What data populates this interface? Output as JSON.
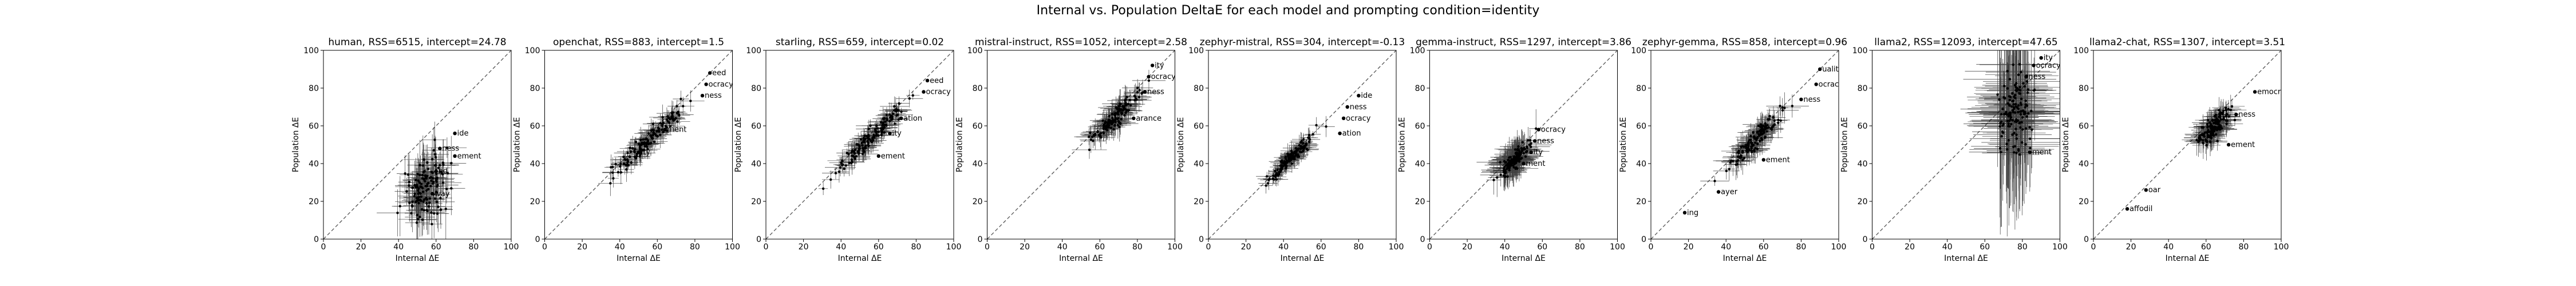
{
  "figure": {
    "title": "Internal vs. Population DeltaE for each model and prompting condition=identity"
  },
  "chart_data": [
    {
      "type": "scatter",
      "title": "human, RSS=6515, intercept=24.78",
      "xlabel": "Internal ΔE",
      "ylabel": "Population ΔE",
      "xlim": [
        0,
        100
      ],
      "ylim": [
        0,
        100
      ],
      "xticks": [
        "0",
        "20",
        "40",
        "60",
        "80",
        "100"
      ],
      "yticks": [
        "0",
        "20",
        "40",
        "60",
        "80",
        "100"
      ],
      "grid": false,
      "diagonal": "y = x (dashed)",
      "center": [
        55,
        28
      ],
      "spread": [
        20,
        14
      ],
      "slope": 0.55,
      "errx": 8,
      "erry": 12,
      "labels": [
        {
          "t": "ide",
          "x": 70,
          "y": 56
        },
        {
          "t": "ness",
          "x": 62,
          "y": 48
        },
        {
          "t": "ement",
          "x": 70,
          "y": 44
        },
        {
          "t": "way",
          "x": 58,
          "y": 24
        },
        {
          "t": "nd",
          "x": 60,
          "y": 36
        }
      ]
    },
    {
      "type": "scatter",
      "title": "openchat, RSS=883, intercept=1.5",
      "xlabel": "Internal ΔE",
      "ylabel": "Population ΔE",
      "xlim": [
        0,
        100
      ],
      "ylim": [
        0,
        100
      ],
      "xticks": [
        "0",
        "20",
        "40",
        "60",
        "80",
        "100"
      ],
      "yticks": [
        "0",
        "20",
        "40",
        "60",
        "80",
        "100"
      ],
      "grid": false,
      "diagonal": "y = x (dashed)",
      "center": [
        55,
        52
      ],
      "spread": [
        32,
        4
      ],
      "slope": 0.97,
      "errx": 6,
      "erry": 5,
      "labels": [
        {
          "t": "eed",
          "x": 88,
          "y": 88
        },
        {
          "t": "ocracy",
          "x": 86,
          "y": 82
        },
        {
          "t": "ness",
          "x": 84,
          "y": 76
        },
        {
          "t": "ment",
          "x": 64,
          "y": 58
        },
        {
          "t": "ity",
          "x": 50,
          "y": 46
        }
      ]
    },
    {
      "type": "scatter",
      "title": "starling, RSS=659, intercept=0.02",
      "xlabel": "Internal ΔE",
      "ylabel": "Population ΔE",
      "xlim": [
        0,
        100
      ],
      "ylim": [
        0,
        100
      ],
      "xticks": [
        "0",
        "20",
        "40",
        "60",
        "80",
        "100"
      ],
      "yticks": [
        "0",
        "20",
        "40",
        "60",
        "80",
        "100"
      ],
      "grid": false,
      "diagonal": "y = x (dashed)",
      "center": [
        55,
        53
      ],
      "spread": [
        35,
        4
      ],
      "slope": 0.98,
      "errx": 6,
      "erry": 5,
      "labels": [
        {
          "t": "eed",
          "x": 86,
          "y": 84
        },
        {
          "t": "ocracy",
          "x": 84,
          "y": 78
        },
        {
          "t": "ation",
          "x": 72,
          "y": 64
        },
        {
          "t": "ity",
          "x": 66,
          "y": 56
        },
        {
          "t": "ement",
          "x": 60,
          "y": 44
        }
      ]
    },
    {
      "type": "scatter",
      "title": "mistral-instruct, RSS=1052, intercept=2.58",
      "xlabel": "Internal ΔE",
      "ylabel": "Population ΔE",
      "xlim": [
        0,
        100
      ],
      "ylim": [
        0,
        100
      ],
      "xticks": [
        "0",
        "20",
        "40",
        "60",
        "80",
        "100"
      ],
      "yticks": [
        "0",
        "20",
        "40",
        "60",
        "80",
        "100"
      ],
      "grid": false,
      "diagonal": "y = x (dashed)",
      "center": [
        68,
        64
      ],
      "spread": [
        22,
        4
      ],
      "slope": 0.95,
      "errx": 7,
      "erry": 6,
      "labels": [
        {
          "t": "ity",
          "x": 88,
          "y": 92
        },
        {
          "t": "ocracy",
          "x": 86,
          "y": 86
        },
        {
          "t": "ness",
          "x": 84,
          "y": 78
        },
        {
          "t": "arance",
          "x": 78,
          "y": 64
        }
      ]
    },
    {
      "type": "scatter",
      "title": "zephyr-mistral, RSS=304, intercept=-0.13",
      "xlabel": "Internal ΔE",
      "ylabel": "Population ΔE",
      "xlim": [
        0,
        100
      ],
      "ylim": [
        0,
        100
      ],
      "xticks": [
        "0",
        "20",
        "40",
        "60",
        "80",
        "100"
      ],
      "yticks": [
        "0",
        "20",
        "40",
        "60",
        "80",
        "100"
      ],
      "grid": false,
      "diagonal": "y = x (dashed)",
      "center": [
        45,
        44
      ],
      "spread": [
        22,
        3
      ],
      "slope": 0.98,
      "errx": 5,
      "erry": 4,
      "labels": [
        {
          "t": "ide",
          "x": 80,
          "y": 76
        },
        {
          "t": "ness",
          "x": 74,
          "y": 70
        },
        {
          "t": "ocracy",
          "x": 72,
          "y": 64
        },
        {
          "t": "ation",
          "x": 70,
          "y": 56
        }
      ]
    },
    {
      "type": "scatter",
      "title": "gemma-instruct, RSS=1297, intercept=3.86",
      "xlabel": "Internal ΔE",
      "ylabel": "Population ΔE",
      "xlim": [
        0,
        100
      ],
      "ylim": [
        0,
        100
      ],
      "xticks": [
        "0",
        "20",
        "40",
        "60",
        "80",
        "100"
      ],
      "yticks": [
        "0",
        "20",
        "40",
        "60",
        "80",
        "100"
      ],
      "grid": false,
      "diagonal": "y = x (dashed)",
      "center": [
        45,
        42
      ],
      "spread": [
        14,
        4
      ],
      "slope": 0.95,
      "errx": 9,
      "erry": 8,
      "labels": [
        {
          "t": "ocracy",
          "x": 58,
          "y": 58
        },
        {
          "t": "ness",
          "x": 56,
          "y": 52
        },
        {
          "t": "ity",
          "x": 54,
          "y": 46
        },
        {
          "t": "ment",
          "x": 50,
          "y": 40
        }
      ]
    },
    {
      "type": "scatter",
      "title": "zephyr-gemma, RSS=858, intercept=0.96",
      "xlabel": "Internal ΔE",
      "ylabel": "Population ΔE",
      "xlim": [
        0,
        100
      ],
      "ylim": [
        0,
        100
      ],
      "xticks": [
        "0",
        "20",
        "40",
        "60",
        "80",
        "100"
      ],
      "yticks": [
        "0",
        "20",
        "40",
        "60",
        "80",
        "100"
      ],
      "grid": false,
      "diagonal": "y = x (dashed)",
      "center": [
        55,
        52
      ],
      "spread": [
        25,
        4
      ],
      "slope": 0.98,
      "errx": 7,
      "erry": 6,
      "labels": [
        {
          "t": "uality",
          "x": 90,
          "y": 90
        },
        {
          "t": "ocracy",
          "x": 88,
          "y": 82
        },
        {
          "t": "ness",
          "x": 80,
          "y": 74
        },
        {
          "t": "ement",
          "x": 60,
          "y": 42
        },
        {
          "t": "ayer",
          "x": 36,
          "y": 25
        },
        {
          "t": "ing",
          "x": 18,
          "y": 14
        }
      ]
    },
    {
      "type": "scatter",
      "title": "llama2, RSS=12093, intercept=47.65",
      "xlabel": "Internal ΔE",
      "ylabel": "Population ΔE",
      "xlim": [
        0,
        100
      ],
      "ylim": [
        0,
        100
      ],
      "xticks": [
        "0",
        "20",
        "40",
        "60",
        "80",
        "100"
      ],
      "yticks": [
        "0",
        "20",
        "40",
        "60",
        "80",
        "100"
      ],
      "grid": false,
      "diagonal": "y = x (dashed)",
      "center": [
        76,
        68
      ],
      "spread": [
        16,
        18
      ],
      "slope": 0.3,
      "errx": 18,
      "erry": 35,
      "labels": [
        {
          "t": "ity",
          "x": 90,
          "y": 96
        },
        {
          "t": "ocracy",
          "x": 86,
          "y": 92
        },
        {
          "t": "ness",
          "x": 82,
          "y": 86
        },
        {
          "t": "ment",
          "x": 84,
          "y": 46
        }
      ]
    },
    {
      "type": "scatter",
      "title": "llama2-chat, RSS=1307, intercept=3.51",
      "xlabel": "Internal ΔE",
      "ylabel": "Population ΔE",
      "xlim": [
        0,
        100
      ],
      "ylim": [
        0,
        100
      ],
      "xticks": [
        "0",
        "20",
        "40",
        "60",
        "80",
        "100"
      ],
      "yticks": [
        "0",
        "20",
        "40",
        "60",
        "80",
        "100"
      ],
      "grid": false,
      "diagonal": "y = x (dashed)",
      "center": [
        65,
        60
      ],
      "spread": [
        15,
        5
      ],
      "slope": 0.92,
      "errx": 7,
      "erry": 6,
      "labels": [
        {
          "t": "emocracy",
          "x": 86,
          "y": 78
        },
        {
          "t": "ness",
          "x": 76,
          "y": 66
        },
        {
          "t": "ement",
          "x": 72,
          "y": 50
        },
        {
          "t": "oar",
          "x": 28,
          "y": 26
        },
        {
          "t": "affodil",
          "x": 18,
          "y": 16
        }
      ]
    }
  ]
}
